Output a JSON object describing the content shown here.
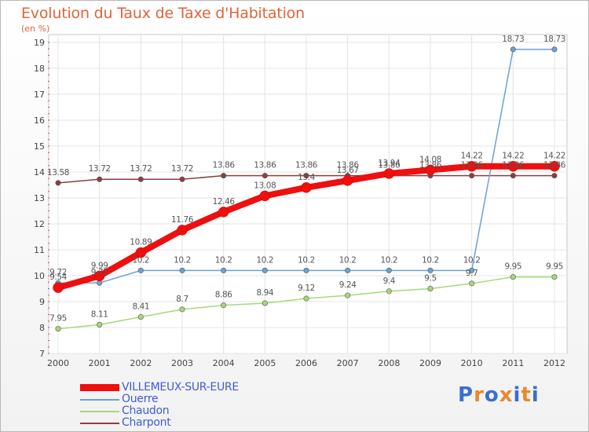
{
  "title": "Evolution du Taux de Taxe d'Habitation",
  "subtitle": "(en %)",
  "logo": {
    "text": "Proxiti",
    "colors": [
      "#3a6fd0",
      "#e8892e",
      "#3a6fd0",
      "#e8892e",
      "#3a6fd0",
      "#e8892e",
      "#3a6fd0"
    ]
  },
  "chart_data": {
    "type": "line",
    "x": [
      "2000",
      "2001",
      "2002",
      "2003",
      "2004",
      "2005",
      "2006",
      "2007",
      "2008",
      "2009",
      "2010",
      "2011",
      "2012"
    ],
    "ylim": [
      7,
      19
    ],
    "yticks": [
      "7",
      "8",
      "9",
      "10",
      "11",
      "12",
      "13",
      "14",
      "15",
      "16",
      "17",
      "18",
      "19"
    ],
    "grid": true,
    "legend_position": "bottom-left",
    "series": [
      {
        "name": "VILLEMEUX-SUR-EURE",
        "color": "#ee0f0f",
        "values": [
          9.54,
          9.99,
          10.89,
          11.76,
          12.46,
          13.08,
          13.4,
          13.67,
          13.94,
          14.08,
          14.22,
          14.22,
          14.22
        ],
        "labels": [
          "9.54",
          "9.99",
          "10.89",
          "11.76",
          "12.46",
          "13.08",
          "13.4",
          "13.67",
          "13.94",
          "14.08",
          "14.22",
          "14.22",
          "14.22"
        ]
      },
      {
        "name": "Ouerre",
        "color": "#6aa2d6",
        "values": [
          9.72,
          9.72,
          10.2,
          10.2,
          10.2,
          10.2,
          10.2,
          10.2,
          10.2,
          10.2,
          10.2,
          18.73,
          18.73
        ],
        "labels": [
          "9.72",
          "9.72",
          "10.2",
          "10.2",
          "10.2",
          "10.2",
          "10.2",
          "10.2",
          "10.2",
          "10.2",
          "10.2",
          "18.73",
          "18.73"
        ]
      },
      {
        "name": "Chaudon",
        "color": "#a6d97a",
        "values": [
          7.95,
          8.11,
          8.41,
          8.7,
          8.86,
          8.94,
          9.12,
          9.24,
          9.4,
          9.5,
          9.7,
          9.95,
          9.95
        ],
        "labels": [
          "7.95",
          "8.11",
          "8.41",
          "8.7",
          "8.86",
          "8.94",
          "9.12",
          "9.24",
          "9.4",
          "9.5",
          "9.7",
          "9.95",
          "9.95"
        ]
      },
      {
        "name": "Charpont",
        "color": "#8b3f3f",
        "values": [
          13.58,
          13.72,
          13.72,
          13.72,
          13.86,
          13.86,
          13.86,
          13.86,
          13.86,
          13.86,
          13.86,
          13.86,
          13.86
        ],
        "labels": [
          "13.58",
          "13.72",
          "13.72",
          "13.72",
          "13.86",
          "13.86",
          "13.86",
          "13.86",
          "13.86",
          "13.86",
          "13.86",
          "13.86",
          "13.86"
        ]
      }
    ]
  }
}
